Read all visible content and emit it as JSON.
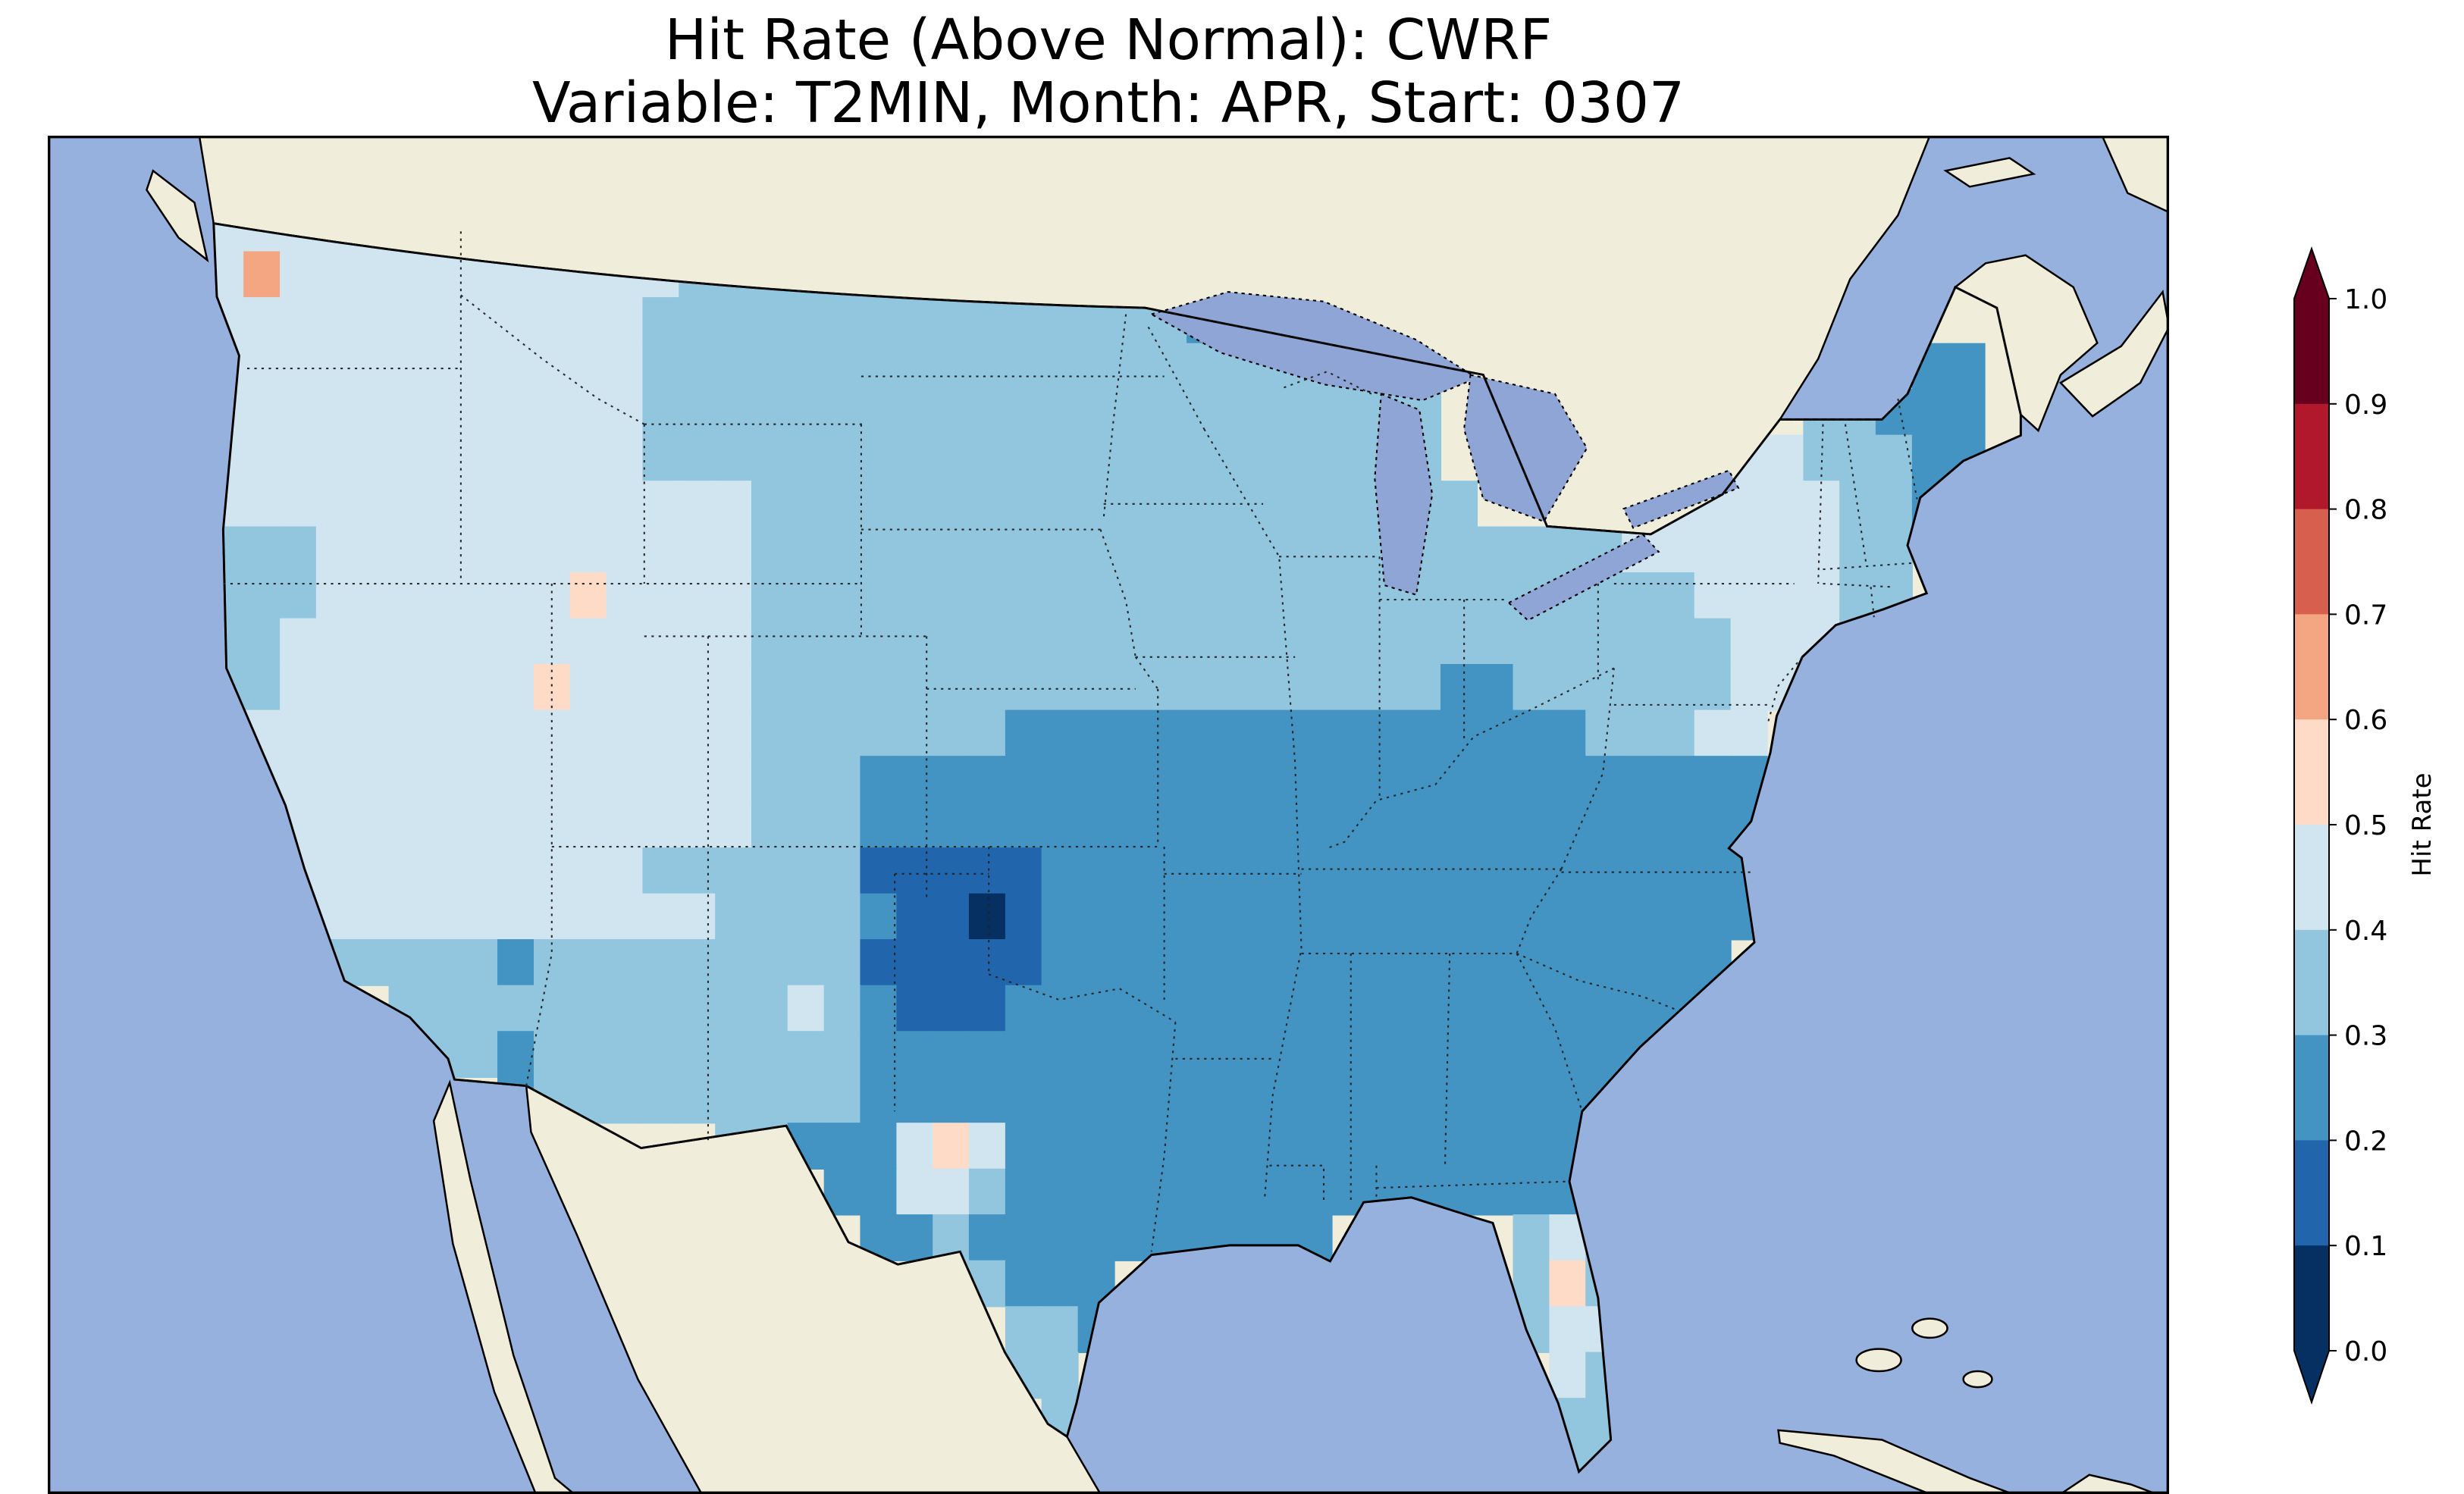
{
  "figure": {
    "title_line1": "Hit Rate (Above Normal): CWRF",
    "title_line2": "Variable: T2MIN, Month: APR, Start: 0307"
  },
  "map": {
    "ocean_color": "#97b1de",
    "land_color": "#f0eedb",
    "lake_color": "#8fa5d6",
    "coastline_color": "#000000"
  },
  "chart_data": {
    "type": "heatmap",
    "title": "Hit Rate (Above Normal): CWRF",
    "subtitle": "Variable: T2MIN, Month: APR, Start: 0307",
    "metric": "Hit Rate (Above Normal)",
    "model": "CWRF",
    "variable": "T2MIN",
    "month": "APR",
    "start": "0307",
    "region": "Contiguous United States",
    "colorbar_label": "Hit Rate",
    "colorbar_ticks_top_to_bottom": [
      "1.0",
      "0.9",
      "0.8",
      "0.7",
      "0.6",
      "0.5",
      "0.4",
      "0.3",
      "0.2",
      "0.1",
      "0.0"
    ],
    "value_range": [
      0.0,
      1.0
    ],
    "bin_ranges_low_to_high": [
      "0.0-0.1",
      "0.1-0.2",
      "0.2-0.3",
      "0.3-0.4",
      "0.4-0.5",
      "0.5-0.6",
      "0.6-0.7",
      "0.7-0.8",
      "0.8-0.9",
      "0.9-1.0"
    ],
    "bin_colors_low_to_high": [
      "#053061",
      "#2166ac",
      "#4393c3",
      "#92c5de",
      "#d1e5f0",
      "#fddbc7",
      "#f4a582",
      "#d6604d",
      "#b2182b",
      "#67001f"
    ],
    "grid_bbox": {
      "lon_west": -125,
      "lon_east": -67,
      "lat_north": 50,
      "lat_south": 24
    },
    "n_cols": 50,
    "n_rows": 30,
    "grid_encoding": "Run-length encoded rows, north to south (lat 50 to 24), 50 columns west to east (lon -125 to -67). Each pair is [symbol,count]; digit d means hit-rate bin [d/10,(d+1)/10); '.' means no data (outside CONUS).",
    "grid_rows_rle": [
      [
        [
          ".",
          50
        ]
      ],
      [
        [
          "4",
          13
        ],
        [
          "3",
          14
        ],
        [
          "2",
          2
        ],
        [
          ".",
          21
        ]
      ],
      [
        [
          "4",
          1
        ],
        [
          "6",
          1
        ],
        [
          "4",
          11
        ],
        [
          "3",
          14
        ],
        [
          "2",
          1
        ],
        [
          ".",
          22
        ]
      ],
      [
        [
          "4",
          12
        ],
        [
          "3",
          15
        ],
        [
          "2",
          1
        ],
        [
          ".",
          22
        ]
      ],
      [
        [
          "4",
          12
        ],
        [
          "3",
          22
        ],
        [
          ".",
          13
        ],
        [
          "2",
          2
        ],
        [
          ".",
          1
        ]
      ],
      [
        [
          "4",
          12
        ],
        [
          "3",
          22
        ],
        [
          ".",
          10
        ],
        [
          "3",
          2
        ],
        [
          "2",
          3
        ],
        [
          ".",
          1
        ]
      ],
      [
        [
          "4",
          12
        ],
        [
          "3",
          22
        ],
        [
          ".",
          7
        ],
        [
          "4",
          3
        ],
        [
          "3",
          3
        ],
        [
          "2",
          2
        ],
        [
          ".",
          1
        ]
      ],
      [
        [
          "4",
          15
        ],
        [
          "3",
          20
        ],
        [
          ".",
          4
        ],
        [
          "4",
          6
        ],
        [
          "3",
          2
        ],
        [
          "2",
          1
        ],
        [
          ".",
          2
        ]
      ],
      [
        [
          "3",
          3
        ],
        [
          "4",
          12
        ],
        [
          "3",
          24
        ],
        [
          "4",
          6
        ],
        [
          "3",
          2
        ],
        [
          ".",
          3
        ]
      ],
      [
        [
          "3",
          3
        ],
        [
          "4",
          5
        ],
        [
          "4",
          2
        ],
        [
          "5",
          1
        ],
        [
          "4",
          1
        ],
        [
          "4",
          3
        ],
        [
          "3",
          26
        ],
        [
          "4",
          4
        ],
        [
          "3",
          2
        ],
        [
          ".",
          3
        ]
      ],
      [
        [
          "3",
          2
        ],
        [
          "4",
          1
        ],
        [
          "4",
          5
        ],
        [
          "4",
          4
        ],
        [
          "4",
          3
        ],
        [
          "3",
          27
        ],
        [
          "4",
          3
        ],
        [
          "3",
          1
        ],
        [
          ".",
          4
        ]
      ],
      [
        [
          "3",
          2
        ],
        [
          "4",
          1
        ],
        [
          "4",
          5
        ],
        [
          "4",
          1
        ],
        [
          "5",
          1
        ],
        [
          "4",
          2
        ],
        [
          "4",
          3
        ],
        [
          "3",
          19
        ],
        [
          "2",
          2
        ],
        [
          "3",
          6
        ],
        [
          "4",
          2
        ],
        [
          ".",
          6
        ]
      ],
      [
        [
          "3",
          1
        ],
        [
          "4",
          2
        ],
        [
          "4",
          5
        ],
        [
          "4",
          4
        ],
        [
          "4",
          3
        ],
        [
          "3",
          3
        ],
        [
          "3",
          4
        ],
        [
          "2",
          4
        ],
        [
          "2",
          2
        ],
        [
          "2",
          3
        ],
        [
          "2",
          2
        ],
        [
          "2",
          3
        ],
        [
          "2",
          2
        ],
        [
          "3",
          3
        ],
        [
          "4",
          2
        ],
        [
          ".",
          7
        ]
      ],
      [
        [
          "3",
          1
        ],
        [
          "4",
          2
        ],
        [
          "4",
          5
        ],
        [
          "4",
          4
        ],
        [
          "4",
          3
        ],
        [
          "3",
          3
        ],
        [
          "2",
          25
        ],
        [
          ".",
          7
        ]
      ],
      [
        [
          "3",
          2
        ],
        [
          "4",
          4
        ],
        [
          "4",
          3
        ],
        [
          "4",
          3
        ],
        [
          "4",
          3
        ],
        [
          "3",
          3
        ],
        [
          "2",
          25
        ],
        [
          ".",
          7
        ]
      ],
      [
        [
          "3",
          2
        ],
        [
          "4",
          4
        ],
        [
          "4",
          2
        ],
        [
          "4",
          4
        ],
        [
          "3",
          2
        ],
        [
          "3",
          4
        ],
        [
          "1",
          5
        ],
        [
          "2",
          3
        ],
        [
          "2",
          17
        ],
        [
          ".",
          7
        ]
      ],
      [
        [
          "3",
          2
        ],
        [
          "4",
          4
        ],
        [
          "4",
          8
        ],
        [
          "3",
          4
        ],
        [
          "2",
          1
        ],
        [
          "1",
          2
        ],
        [
          "0",
          1
        ],
        [
          "1",
          1
        ],
        [
          "2",
          20
        ],
        [
          ".",
          7
        ]
      ],
      [
        [
          ".",
          3
        ],
        [
          "3",
          3
        ],
        [
          "3",
          2
        ],
        [
          "2",
          1
        ],
        [
          "3",
          5
        ],
        [
          "3",
          4
        ],
        [
          "1",
          5
        ],
        [
          "2",
          19
        ],
        [
          ".",
          8
        ]
      ],
      [
        [
          ".",
          5
        ],
        [
          "3",
          3
        ],
        [
          "3",
          6
        ],
        [
          "3",
          2
        ],
        [
          "4",
          1
        ],
        [
          "3",
          1
        ],
        [
          "2",
          1
        ],
        [
          "1",
          3
        ],
        [
          "2",
          1
        ],
        [
          "2",
          19
        ],
        [
          ".",
          8
        ]
      ],
      [
        [
          ".",
          6
        ],
        [
          "3",
          1
        ],
        [
          "3",
          1
        ],
        [
          "2",
          1
        ],
        [
          "3",
          5
        ],
        [
          "3",
          4
        ],
        [
          "2",
          24
        ],
        [
          ".",
          8
        ]
      ],
      [
        [
          ".",
          8
        ],
        [
          "2",
          1
        ],
        [
          "3",
          5
        ],
        [
          "3",
          4
        ],
        [
          "2",
          24
        ],
        [
          ".",
          8
        ]
      ],
      [
        [
          ".",
          14
        ],
        [
          "3",
          2
        ],
        [
          "2",
          2
        ],
        [
          "2",
          1
        ],
        [
          "4",
          1
        ],
        [
          "5",
          1
        ],
        [
          "4",
          1
        ],
        [
          "2",
          1
        ],
        [
          "2",
          15
        ],
        [
          ".",
          12
        ]
      ],
      [
        [
          ".",
          17
        ],
        [
          "2",
          2
        ],
        [
          "4",
          2
        ],
        [
          "3",
          1
        ],
        [
          "2",
          1
        ],
        [
          "2",
          15
        ],
        [
          ".",
          12
        ]
      ],
      [
        [
          ".",
          18
        ],
        [
          "2",
          2
        ],
        [
          "3",
          1
        ],
        [
          "2",
          7
        ],
        [
          "2",
          3
        ],
        [
          ".",
          5
        ],
        [
          "3",
          1
        ],
        [
          "4",
          1
        ],
        [
          "3",
          1
        ],
        [
          ".",
          11
        ]
      ],
      [
        [
          ".",
          20
        ],
        [
          "3",
          2
        ],
        [
          "2",
          3
        ],
        [
          ".",
          11
        ],
        [
          "3",
          1
        ],
        [
          "5",
          1
        ],
        [
          "3",
          1
        ],
        [
          ".",
          11
        ]
      ],
      [
        [
          ".",
          22
        ],
        [
          "3",
          2
        ],
        [
          "2",
          1
        ],
        [
          ".",
          11
        ],
        [
          "3",
          1
        ],
        [
          "4",
          2
        ],
        [
          ".",
          11
        ]
      ],
      [
        [
          ".",
          22
        ],
        [
          "3",
          2
        ],
        [
          ".",
          13
        ],
        [
          "4",
          1
        ],
        [
          "3",
          1
        ],
        [
          ".",
          11
        ]
      ],
      [
        [
          ".",
          23
        ],
        [
          "3",
          1
        ],
        [
          ".",
          13
        ],
        [
          "3",
          2
        ],
        [
          ".",
          11
        ]
      ],
      [
        [
          ".",
          37
        ],
        [
          "3",
          2
        ],
        [
          ".",
          11
        ]
      ],
      [
        [
          ".",
          50
        ]
      ]
    ],
    "observed_pattern_summary": "Lowest hit rates (0.1-0.2, dark blue, with a 0.0-0.1 core) over west Oklahoma / Texas panhandle; 0.2-0.3 across Texas, the South, Southeast, Ohio Valley and Maine; 0.3-0.4 across the Plains, Midwest, California and the Northeast; 0.4-0.5 over the Northwest and Great Basin; scattered 0.5-0.6 cells in west Texas, Utah and central Florida; one 0.6-0.7 cell on the Washington coast."
  }
}
